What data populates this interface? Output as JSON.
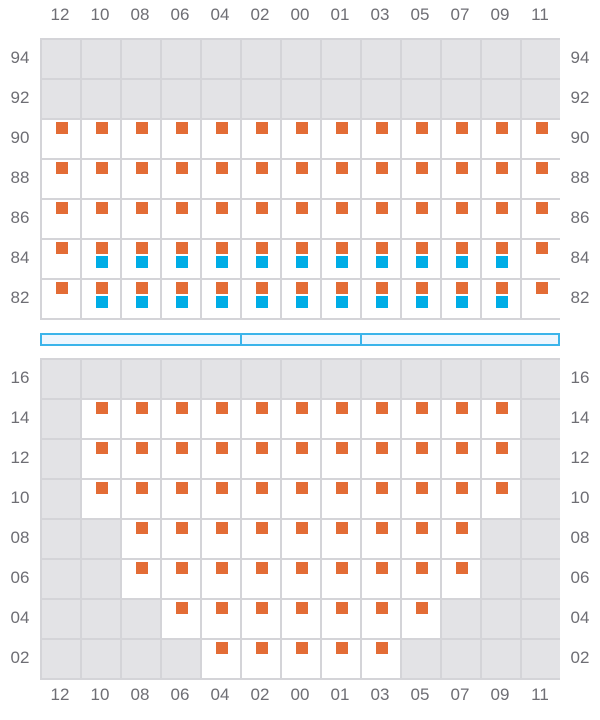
{
  "colors": {
    "orange": "#e36c35",
    "blue": "#00ade6",
    "unavailable": "#e3e3e6",
    "grid": "#d4d4d8",
    "divider": "#3bb4ea"
  },
  "columns": [
    "12",
    "10",
    "08",
    "06",
    "04",
    "02",
    "00",
    "01",
    "03",
    "05",
    "07",
    "09",
    "11"
  ],
  "legend_codes": {
    "X": "unavailable",
    "O": "orange-marker",
    "OB": "orange-and-blue-markers"
  },
  "upper_section": {
    "rows": [
      {
        "label": "94",
        "cells": [
          "X",
          "X",
          "X",
          "X",
          "X",
          "X",
          "X",
          "X",
          "X",
          "X",
          "X",
          "X",
          "X"
        ]
      },
      {
        "label": "92",
        "cells": [
          "X",
          "X",
          "X",
          "X",
          "X",
          "X",
          "X",
          "X",
          "X",
          "X",
          "X",
          "X",
          "X"
        ]
      },
      {
        "label": "90",
        "cells": [
          "O",
          "O",
          "O",
          "O",
          "O",
          "O",
          "O",
          "O",
          "O",
          "O",
          "O",
          "O",
          "O"
        ]
      },
      {
        "label": "88",
        "cells": [
          "O",
          "O",
          "O",
          "O",
          "O",
          "O",
          "O",
          "O",
          "O",
          "O",
          "O",
          "O",
          "O"
        ]
      },
      {
        "label": "86",
        "cells": [
          "O",
          "O",
          "O",
          "O",
          "O",
          "O",
          "O",
          "O",
          "O",
          "O",
          "O",
          "O",
          "O"
        ]
      },
      {
        "label": "84",
        "cells": [
          "O",
          "OB",
          "OB",
          "OB",
          "OB",
          "OB",
          "OB",
          "OB",
          "OB",
          "OB",
          "OB",
          "OB",
          "O"
        ]
      },
      {
        "label": "82",
        "cells": [
          "O",
          "OB",
          "OB",
          "OB",
          "OB",
          "OB",
          "OB",
          "OB",
          "OB",
          "OB",
          "OB",
          "OB",
          "O"
        ]
      }
    ]
  },
  "lower_section": {
    "rows": [
      {
        "label": "16",
        "cells": [
          "X",
          "X",
          "X",
          "X",
          "X",
          "X",
          "X",
          "X",
          "X",
          "X",
          "X",
          "X",
          "X"
        ]
      },
      {
        "label": "14",
        "cells": [
          "X",
          "O",
          "O",
          "O",
          "O",
          "O",
          "O",
          "O",
          "O",
          "O",
          "O",
          "O",
          "X"
        ]
      },
      {
        "label": "12",
        "cells": [
          "X",
          "O",
          "O",
          "O",
          "O",
          "O",
          "O",
          "O",
          "O",
          "O",
          "O",
          "O",
          "X"
        ]
      },
      {
        "label": "10",
        "cells": [
          "X",
          "O",
          "O",
          "O",
          "O",
          "O",
          "O",
          "O",
          "O",
          "O",
          "O",
          "O",
          "X"
        ]
      },
      {
        "label": "08",
        "cells": [
          "X",
          "X",
          "O",
          "O",
          "O",
          "O",
          "O",
          "O",
          "O",
          "O",
          "O",
          "X",
          "X"
        ]
      },
      {
        "label": "06",
        "cells": [
          "X",
          "X",
          "O",
          "O",
          "O",
          "O",
          "O",
          "O",
          "O",
          "O",
          "O",
          "X",
          "X"
        ]
      },
      {
        "label": "04",
        "cells": [
          "X",
          "X",
          "X",
          "O",
          "O",
          "O",
          "O",
          "O",
          "O",
          "O",
          "X",
          "X",
          "X"
        ]
      },
      {
        "label": "02",
        "cells": [
          "X",
          "X",
          "X",
          "X",
          "O",
          "O",
          "O",
          "O",
          "O",
          "X",
          "X",
          "X",
          "X"
        ]
      }
    ]
  }
}
